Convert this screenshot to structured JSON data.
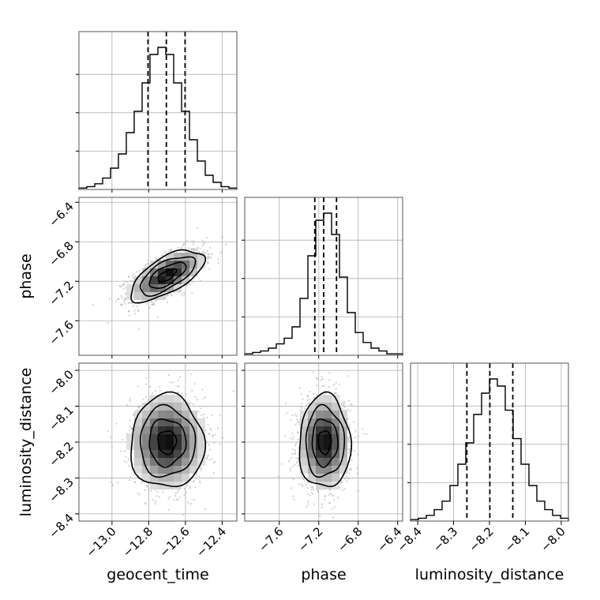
{
  "chart_data": {
    "type": "corner",
    "colors": {
      "line": "#000000",
      "grid": "#b0b0b0",
      "scatter": "#9a9a9a"
    },
    "grid": true,
    "parameters": [
      {
        "name": "geocent_time",
        "label": "geocent_time",
        "range": [
          -13.18,
          -12.32
        ],
        "ticks": [
          -13.0,
          -12.8,
          -12.6,
          -12.4
        ],
        "tick_labels": [
          "−13.0",
          "−12.8",
          "−12.6",
          "−12.4"
        ],
        "quantiles": [
          -12.804,
          -12.704,
          -12.602
        ],
        "mean": -12.7,
        "std": 0.1
      },
      {
        "name": "phase",
        "label": "phase",
        "range": [
          -7.95,
          -6.35
        ],
        "ticks": [
          -7.6,
          -7.2,
          -6.8,
          -6.4
        ],
        "tick_labels": [
          "−7.6",
          "−7.2",
          "−6.8",
          "−6.4"
        ],
        "quantiles": [
          -7.24,
          -7.15,
          -7.02
        ],
        "mean": -7.14,
        "std": 0.13
      },
      {
        "name": "luminosity_distance",
        "label": "luminosity_distance",
        "range": [
          -8.42,
          -7.98
        ],
        "ticks": [
          -8.4,
          -8.3,
          -8.2,
          -8.1,
          -8.0
        ],
        "tick_labels": [
          "−8.4",
          "−8.3",
          "−8.2",
          "−8.1",
          "−8.0"
        ],
        "quantiles": [
          -8.263,
          -8.199,
          -8.135
        ],
        "mean": -8.2,
        "std": 0.065
      }
    ],
    "histograms": [
      {
        "param": "geocent_time",
        "heights": [
          0.01,
          0.02,
          0.04,
          0.08,
          0.15,
          0.25,
          0.4,
          0.55,
          0.75,
          0.95,
          1.0,
          0.95,
          0.75,
          0.55,
          0.35,
          0.2,
          0.1,
          0.05,
          0.02,
          0.01
        ]
      },
      {
        "param": "phase",
        "heights": [
          0.01,
          0.02,
          0.03,
          0.05,
          0.08,
          0.12,
          0.2,
          0.4,
          0.7,
          0.95,
          1.0,
          0.85,
          0.55,
          0.3,
          0.16,
          0.09,
          0.05,
          0.03,
          0.01,
          0.01
        ]
      },
      {
        "param": "luminosity_distance",
        "heights": [
          0.01,
          0.02,
          0.04,
          0.08,
          0.14,
          0.25,
          0.4,
          0.55,
          0.75,
          0.9,
          1.0,
          0.95,
          0.78,
          0.58,
          0.4,
          0.25,
          0.14,
          0.08,
          0.04,
          0.02
        ]
      }
    ],
    "pairs": [
      {
        "x": "geocent_time",
        "y": "phase",
        "correlation": 0.65
      },
      {
        "x": "geocent_time",
        "y": "luminosity_distance",
        "correlation": 0.0
      },
      {
        "x": "phase",
        "y": "luminosity_distance",
        "correlation": 0.0
      }
    ]
  }
}
